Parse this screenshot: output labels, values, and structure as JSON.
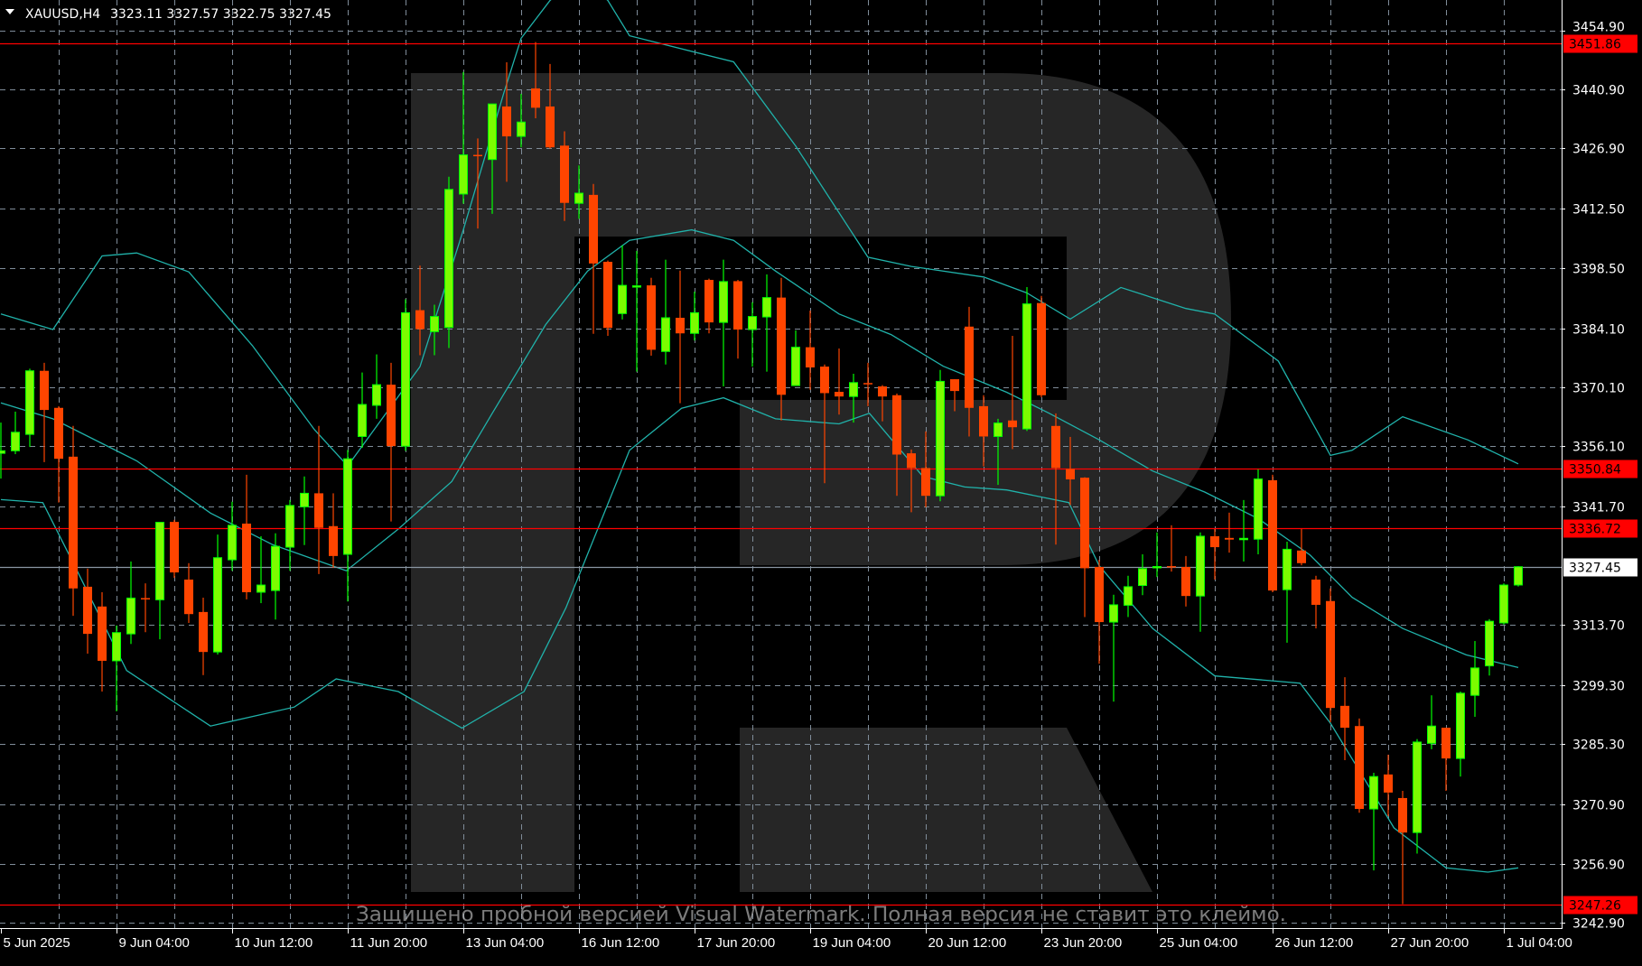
{
  "header": {
    "menu_icon": "triangle-down-icon",
    "symbol": "XAUUSD,H4",
    "ohlc_text": "3323.11 3327.57 3322.75 3327.45"
  },
  "watermark": {
    "logo": "R",
    "text": "Защищено пробной версией Visual Watermark. Полная версия не ставит это клеймо."
  },
  "colors": {
    "background": "#000000",
    "bull_body": "#7CFC00",
    "bull_border": "#00FF00",
    "bear": "#FF4500",
    "bands": "#20B2AA",
    "grid": "#7F8C99",
    "level_line": "#FF0000",
    "price_line": "#8A96A3",
    "axis": "#FFFFFF",
    "logo": "#262626"
  },
  "chart_data": {
    "type": "candlestick",
    "symbol": "XAUUSD",
    "timeframe": "H4",
    "ylim": [
      3241.6,
      3462.1
    ],
    "grid": true,
    "y_ticks": [
      "3454.90",
      "3440.90",
      "3426.90",
      "3412.50",
      "3398.50",
      "3384.10",
      "3370.10",
      "3356.10",
      "3341.70",
      "3313.70",
      "3299.30",
      "3285.30",
      "3270.90",
      "3256.90",
      "3242.90"
    ],
    "x_ticks": [
      {
        "bar": 0,
        "label": "5 Jun 2025"
      },
      {
        "bar": 8,
        "label": "9 Jun 04:00"
      },
      {
        "bar": 16,
        "label": "10 Jun 12:00"
      },
      {
        "bar": 24,
        "label": "11 Jun 20:00"
      },
      {
        "bar": 32,
        "label": "13 Jun 04:00"
      },
      {
        "bar": 40,
        "label": "16 Jun 12:00"
      },
      {
        "bar": 48,
        "label": "17 Jun 20:00"
      },
      {
        "bar": 56,
        "label": "19 Jun 04:00"
      },
      {
        "bar": 64,
        "label": "20 Jun 12:00"
      },
      {
        "bar": 72,
        "label": "23 Jun 20:00"
      },
      {
        "bar": 80,
        "label": "25 Jun 04:00"
      },
      {
        "bar": 88,
        "label": "26 Jun 12:00"
      },
      {
        "bar": 96,
        "label": "27 Jun 20:00"
      },
      {
        "bar": 104,
        "label": "1 Jul 04:00"
      }
    ],
    "levels": [
      {
        "price": 3451.86,
        "label": "3451.86"
      },
      {
        "price": 3350.84,
        "label": "3350.84"
      },
      {
        "price": 3336.72,
        "label": "3336.72"
      },
      {
        "price": 3247.26,
        "label": "3247.26"
      }
    ],
    "current_price": {
      "price": 3327.45,
      "label": "3327.45"
    },
    "candles_ohlc": [
      [
        3354.4,
        3361.7,
        3348.4,
        3355.0
      ],
      [
        3355.0,
        3364.3,
        3354.2,
        3359.4
      ],
      [
        3358.9,
        3374.5,
        3355.9,
        3374.0
      ],
      [
        3374.0,
        3375.9,
        3352.3,
        3364.7
      ],
      [
        3365.2,
        3365.6,
        3342.7,
        3353.1
      ],
      [
        3353.6,
        3360.9,
        3315.8,
        3322.3
      ],
      [
        3322.7,
        3327.0,
        3306.8,
        3311.5
      ],
      [
        3318.0,
        3321.4,
        3297.8,
        3305.1
      ],
      [
        3305.1,
        3313.5,
        3293.1,
        3311.8
      ],
      [
        3311.5,
        3328.7,
        3309.1,
        3320.0
      ],
      [
        3320.0,
        3323.5,
        3311.9,
        3319.9
      ],
      [
        3319.6,
        3338.0,
        3310.2,
        3338.0
      ],
      [
        3338.1,
        3338.6,
        3324.8,
        3326.1
      ],
      [
        3324.4,
        3328.3,
        3314.1,
        3316.2
      ],
      [
        3316.7,
        3320.1,
        3301.7,
        3307.2
      ],
      [
        3307.2,
        3335.1,
        3306.6,
        3329.6
      ],
      [
        3329.1,
        3342.9,
        3326.5,
        3337.3
      ],
      [
        3337.7,
        3349.3,
        3319.7,
        3321.4
      ],
      [
        3321.4,
        3334.7,
        3318.8,
        3323.1
      ],
      [
        3321.8,
        3335.4,
        3314.9,
        3332.3
      ],
      [
        3332.1,
        3343.3,
        3326.5,
        3342.0
      ],
      [
        3341.7,
        3348.9,
        3332.6,
        3344.9
      ],
      [
        3344.9,
        3360.9,
        3325.7,
        3336.7
      ],
      [
        3337.1,
        3344.9,
        3327.2,
        3330.0
      ],
      [
        3330.4,
        3355.2,
        3319.2,
        3353.1
      ],
      [
        3358.4,
        3373.6,
        3355.7,
        3366.0
      ],
      [
        3365.8,
        3377.9,
        3362.6,
        3370.7
      ],
      [
        3370.7,
        3375.9,
        3338.2,
        3356.1
      ],
      [
        3356.1,
        3391.0,
        3355.0,
        3387.8
      ],
      [
        3388.4,
        3399.0,
        3377.7,
        3383.9
      ],
      [
        3383.3,
        3389.7,
        3377.7,
        3386.9
      ],
      [
        3384.3,
        3420.1,
        3379.4,
        3417.1
      ],
      [
        3416.0,
        3445.0,
        3413.7,
        3425.3
      ],
      [
        3425.3,
        3429.2,
        3407.8,
        3425.0
      ],
      [
        3424.2,
        3437.4,
        3411.3,
        3437.4
      ],
      [
        3436.8,
        3447.3,
        3418.9,
        3429.7
      ],
      [
        3429.7,
        3439.8,
        3427.1,
        3433.1
      ],
      [
        3441.1,
        3452.1,
        3434.0,
        3436.5
      ],
      [
        3436.8,
        3446.9,
        3426.8,
        3427.1
      ],
      [
        3427.5,
        3430.9,
        3409.6,
        3413.9
      ],
      [
        3413.8,
        3422.8,
        3410.1,
        3416.2
      ],
      [
        3415.8,
        3418.4,
        3382.8,
        3399.5
      ],
      [
        3399.9,
        3400.2,
        3382.3,
        3384.2
      ],
      [
        3387.6,
        3403.8,
        3386.2,
        3394.3
      ],
      [
        3394.0,
        3402.5,
        3373.8,
        3394.2
      ],
      [
        3394.3,
        3396.1,
        3377.6,
        3379.0
      ],
      [
        3378.6,
        3400.4,
        3375.5,
        3386.6
      ],
      [
        3386.6,
        3397.8,
        3366.3,
        3382.9
      ],
      [
        3382.9,
        3392.8,
        3381.2,
        3387.8
      ],
      [
        3395.6,
        3395.9,
        3382.9,
        3385.5
      ],
      [
        3385.5,
        3400.4,
        3370.3,
        3395.2
      ],
      [
        3395.3,
        3395.6,
        3376.9,
        3383.8
      ],
      [
        3383.8,
        3390.3,
        3375.0,
        3386.9
      ],
      [
        3386.8,
        3396.9,
        3373.8,
        3391.4
      ],
      [
        3391.4,
        3396.1,
        3362.2,
        3368.3
      ],
      [
        3370.5,
        3383.6,
        3370.5,
        3379.6
      ],
      [
        3379.6,
        3388.3,
        3369.5,
        3374.8
      ],
      [
        3375.0,
        3375.5,
        3347.3,
        3368.7
      ],
      [
        3369.0,
        3379.3,
        3363.6,
        3367.9
      ],
      [
        3367.9,
        3373.3,
        3361.7,
        3371.2
      ],
      [
        3371.1,
        3375.9,
        3365.6,
        3370.9
      ],
      [
        3370.3,
        3370.6,
        3362.0,
        3367.9
      ],
      [
        3368.2,
        3368.6,
        3344.3,
        3354.1
      ],
      [
        3354.4,
        3355.3,
        3340.4,
        3350.9
      ],
      [
        3350.9,
        3359.6,
        3341.6,
        3344.3
      ],
      [
        3344.3,
        3374.2,
        3343.0,
        3371.5
      ],
      [
        3372.0,
        3372.0,
        3364.4,
        3369.2
      ],
      [
        3384.5,
        3389.2,
        3358.4,
        3365.2
      ],
      [
        3365.6,
        3368.2,
        3351.3,
        3358.4
      ],
      [
        3358.4,
        3362.6,
        3346.9,
        3361.6
      ],
      [
        3362.2,
        3382.3,
        3355.4,
        3360.6
      ],
      [
        3360.2,
        3393.9,
        3359.7,
        3389.9
      ],
      [
        3390.1,
        3391.8,
        3367.7,
        3368.2
      ],
      [
        3360.9,
        3363.9,
        3332.7,
        3350.9
      ],
      [
        3350.7,
        3358.3,
        3342.1,
        3348.2
      ],
      [
        3348.6,
        3348.7,
        3315.5,
        3327.1
      ],
      [
        3327.4,
        3329.1,
        3304.4,
        3314.3
      ],
      [
        3314.3,
        3320.8,
        3295.4,
        3318.4
      ],
      [
        3318.3,
        3325.3,
        3315.5,
        3322.7
      ],
      [
        3323.0,
        3330.4,
        3320.7,
        3327.0
      ],
      [
        3327.3,
        3335.6,
        3325.0,
        3327.5
      ],
      [
        3327.6,
        3337.3,
        3326.3,
        3327.4
      ],
      [
        3327.4,
        3330.0,
        3318.0,
        3320.5
      ],
      [
        3320.5,
        3335.6,
        3312.0,
        3334.7
      ],
      [
        3334.7,
        3336.4,
        3324.4,
        3332.1
      ],
      [
        3334.3,
        3340.3,
        3330.8,
        3333.9
      ],
      [
        3333.9,
        3343.3,
        3328.7,
        3334.2
      ],
      [
        3334.0,
        3350.6,
        3330.4,
        3348.3
      ],
      [
        3348.0,
        3349.3,
        3321.4,
        3321.8
      ],
      [
        3322.0,
        3333.4,
        3309.4,
        3331.6
      ],
      [
        3331.3,
        3336.4,
        3327.8,
        3328.3
      ],
      [
        3324.4,
        3325.3,
        3312.8,
        3318.4
      ],
      [
        3319.3,
        3322.3,
        3290.5,
        3293.9
      ],
      [
        3294.4,
        3301.2,
        3281.5,
        3289.2
      ],
      [
        3289.6,
        3291.4,
        3269.0,
        3269.9
      ],
      [
        3269.9,
        3278.5,
        3255.3,
        3277.6
      ],
      [
        3278.1,
        3282.8,
        3268.2,
        3273.8
      ],
      [
        3272.5,
        3274.2,
        3247.3,
        3264.3
      ],
      [
        3264.3,
        3286.5,
        3259.3,
        3285.8
      ],
      [
        3285.5,
        3296.9,
        3284.1,
        3289.6
      ],
      [
        3289.2,
        3289.2,
        3274.2,
        3281.9
      ],
      [
        3281.9,
        3297.8,
        3277.6,
        3297.4
      ],
      [
        3296.9,
        3309.8,
        3291.8,
        3303.4
      ],
      [
        3303.9,
        3315.0,
        3301.6,
        3314.5
      ],
      [
        3314.1,
        3323.5,
        3313.7,
        3323.1
      ],
      [
        3323.11,
        3327.57,
        3322.75,
        3327.45
      ]
    ],
    "bollinger_bands": {
      "upper": [
        [
          0,
          3387.5
        ],
        [
          3.6,
          3383.8
        ],
        [
          7,
          3401.3
        ],
        [
          9.4,
          3402
        ],
        [
          13,
          3397.5
        ],
        [
          17.4,
          3380
        ],
        [
          21.7,
          3360
        ],
        [
          24,
          3351.4
        ],
        [
          29,
          3375
        ],
        [
          32,
          3407.5
        ],
        [
          34.8,
          3440
        ],
        [
          36,
          3453
        ],
        [
          38,
          3462
        ],
        [
          40,
          3468
        ],
        [
          42,
          3462
        ],
        [
          43.5,
          3453.6
        ],
        [
          50.7,
          3447.4
        ],
        [
          55,
          3427.4
        ],
        [
          60,
          3401
        ],
        [
          63,
          3398.8
        ],
        [
          68,
          3396.3
        ],
        [
          71,
          3392.5
        ],
        [
          74,
          3386.3
        ],
        [
          77.5,
          3393.8
        ],
        [
          82,
          3388.8
        ],
        [
          84,
          3387.5
        ],
        [
          88.4,
          3376.3
        ],
        [
          92,
          3353.9
        ],
        [
          93.5,
          3355.1
        ],
        [
          97,
          3363.1
        ],
        [
          101.5,
          3357.6
        ],
        [
          105,
          3351.9
        ]
      ],
      "middle": [
        [
          0,
          3366.4
        ],
        [
          3.6,
          3362.6
        ],
        [
          9.4,
          3352.6
        ],
        [
          14.5,
          3340.2
        ],
        [
          18.8,
          3332.7
        ],
        [
          23.9,
          3326.5
        ],
        [
          27.5,
          3336.4
        ],
        [
          31.2,
          3347.7
        ],
        [
          34,
          3363.9
        ],
        [
          37.7,
          3385
        ],
        [
          40.6,
          3397.7
        ],
        [
          43.5,
          3405
        ],
        [
          47.8,
          3407.5
        ],
        [
          50.7,
          3405
        ],
        [
          53.6,
          3397.7
        ],
        [
          58,
          3387.5
        ],
        [
          61.6,
          3382.6
        ],
        [
          65.2,
          3375.1
        ],
        [
          69.6,
          3368.9
        ],
        [
          72.5,
          3364
        ],
        [
          76,
          3357.6
        ],
        [
          79.7,
          3350.2
        ],
        [
          83.3,
          3345.2
        ],
        [
          87,
          3338.9
        ],
        [
          90.6,
          3330.2
        ],
        [
          93.5,
          3320.2
        ],
        [
          97,
          3312.8
        ],
        [
          101.4,
          3306.5
        ],
        [
          105,
          3303.5
        ]
      ],
      "lower": [
        [
          0,
          3343.4
        ],
        [
          2.9,
          3342.7
        ],
        [
          5.1,
          3327.7
        ],
        [
          8.7,
          3302.8
        ],
        [
          14.5,
          3289.6
        ],
        [
          20.3,
          3294.1
        ],
        [
          23.2,
          3300.8
        ],
        [
          27.5,
          3297.8
        ],
        [
          31.9,
          3289.1
        ],
        [
          36.2,
          3297.8
        ],
        [
          39.1,
          3317.7
        ],
        [
          43.5,
          3355.1
        ],
        [
          47.1,
          3365.1
        ],
        [
          50,
          3367.6
        ],
        [
          53.6,
          3362.6
        ],
        [
          58,
          3361.4
        ],
        [
          60.1,
          3363.9
        ],
        [
          63.8,
          3348.9
        ],
        [
          66.7,
          3346.4
        ],
        [
          69.6,
          3345.7
        ],
        [
          73.9,
          3342.7
        ],
        [
          76,
          3327.7
        ],
        [
          79.7,
          3312.8
        ],
        [
          84,
          3301.5
        ],
        [
          89.9,
          3299.8
        ],
        [
          92,
          3290.3
        ],
        [
          94.2,
          3277.9
        ],
        [
          96.4,
          3265.4
        ],
        [
          100,
          3255.9
        ],
        [
          102.9,
          3254.9
        ],
        [
          105,
          3255.9
        ]
      ]
    }
  }
}
